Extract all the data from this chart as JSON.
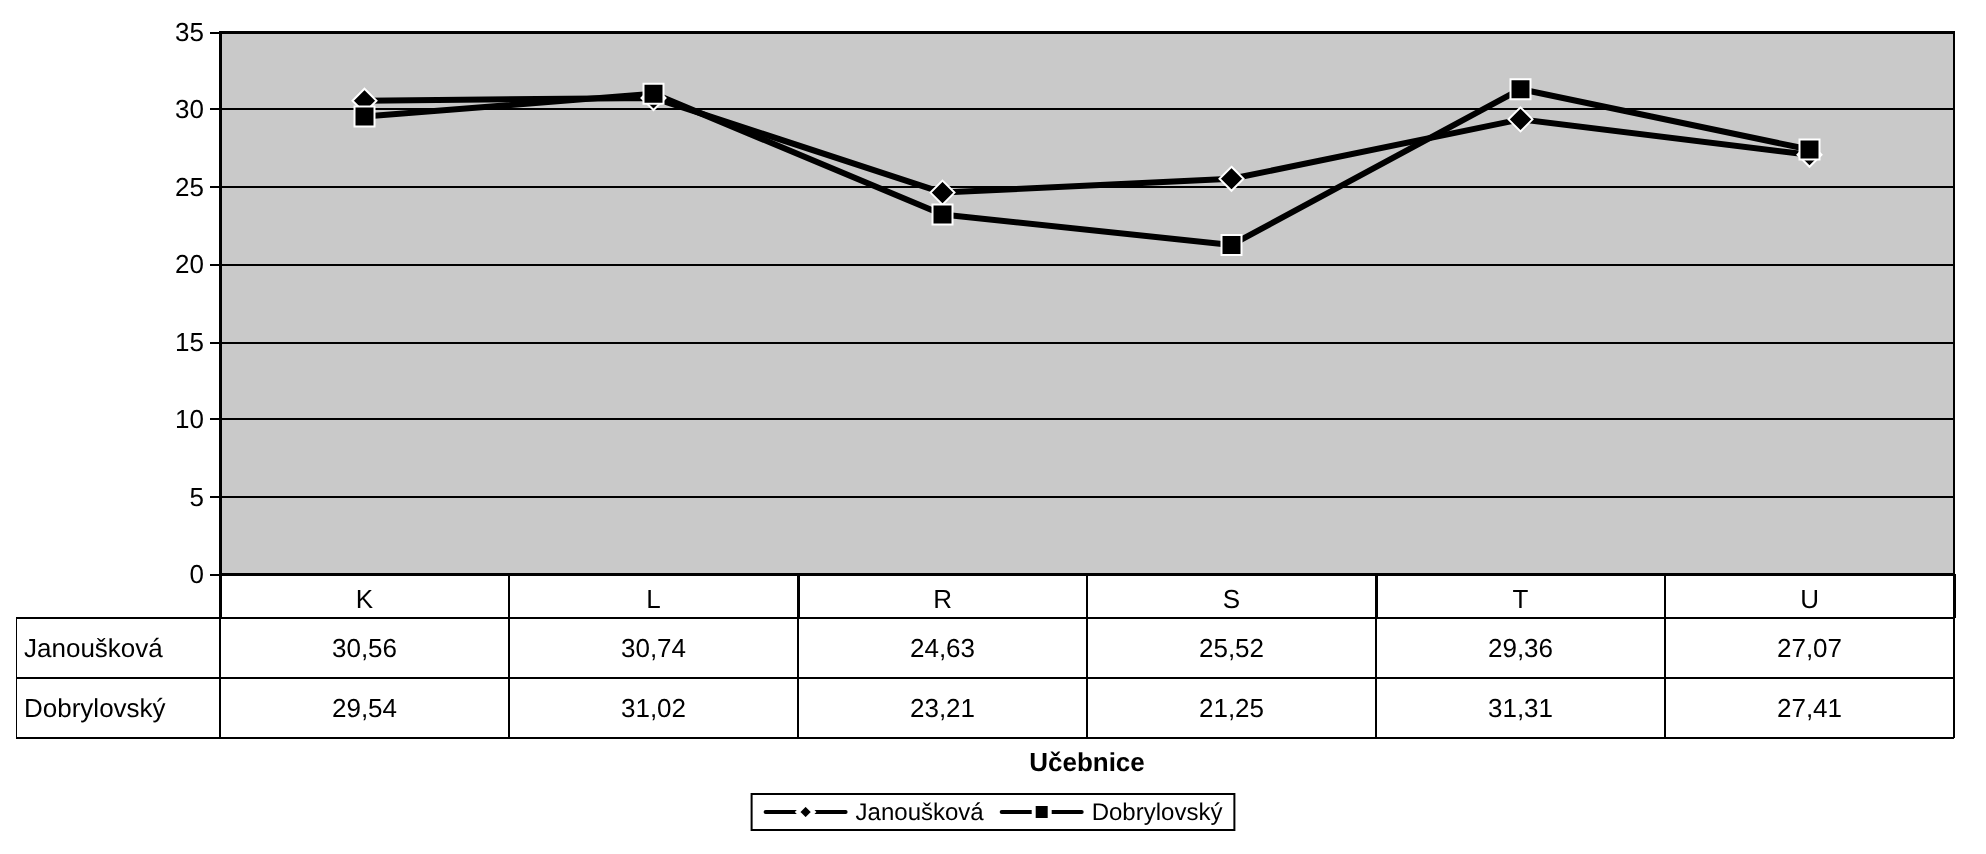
{
  "chart_data": {
    "type": "line",
    "annotations": [
      "Učebnice"
    ],
    "categories": [
      "K",
      "L",
      "R",
      "S",
      "T",
      "U"
    ],
    "series": [
      {
        "name": "Janoušková",
        "color": "#000000",
        "marker": "diamond",
        "values": [
          30.56,
          30.74,
          24.63,
          25.52,
          29.36,
          27.07
        ],
        "value_labels": [
          "30,56",
          "30,74",
          "24,63",
          "25,52",
          "29,36",
          "27,07"
        ]
      },
      {
        "name": "Dobrylovský",
        "color": "#000000",
        "marker": "square",
        "values": [
          29.54,
          31.02,
          23.21,
          21.25,
          31.31,
          27.41
        ],
        "value_labels": [
          "29,54",
          "31,02",
          "23,21",
          "21,25",
          "31,31",
          "27,41"
        ]
      }
    ],
    "ylim": [
      0,
      35
    ],
    "yticks": [
      0,
      5,
      10,
      15,
      20,
      25,
      30,
      35
    ],
    "grid": "y",
    "legend": "bottom"
  }
}
